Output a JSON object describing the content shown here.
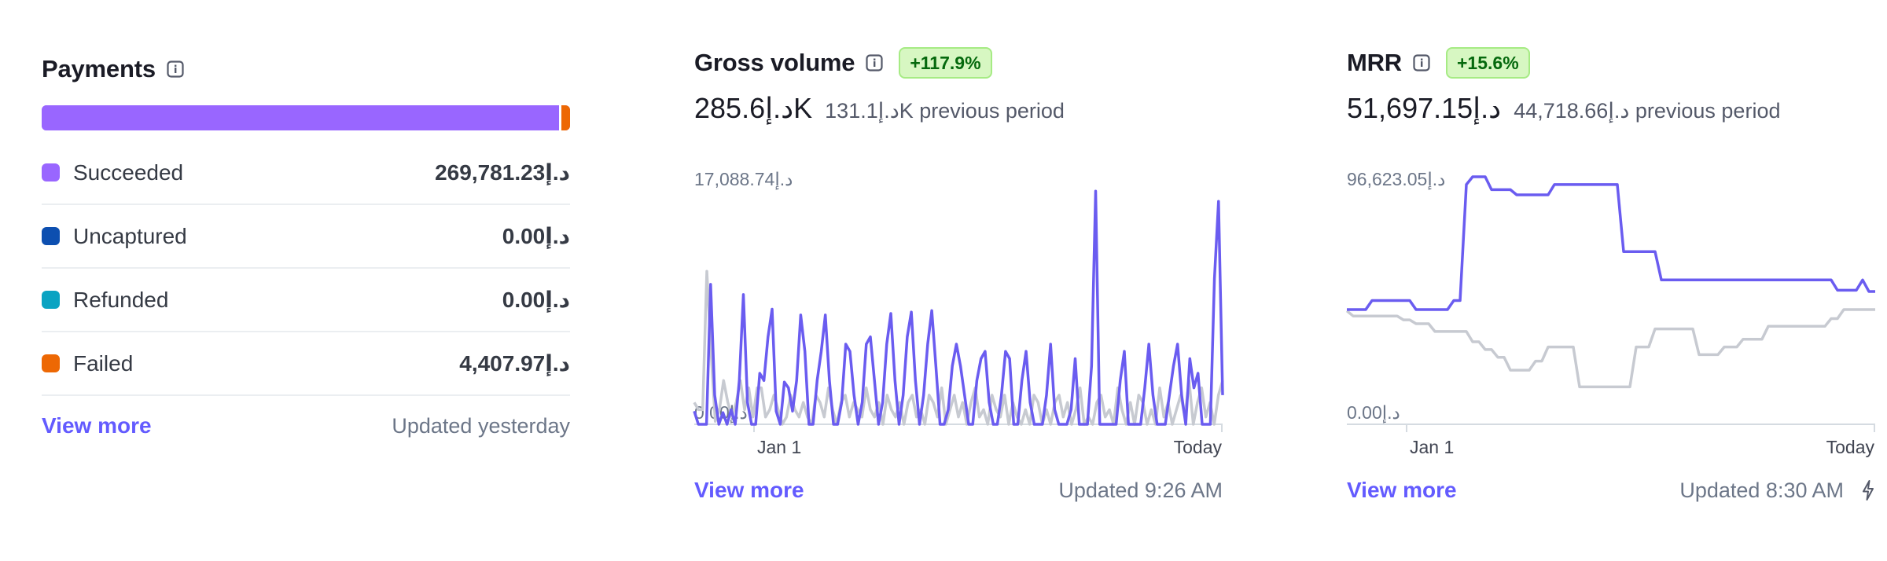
{
  "colors": {
    "accent": "#635bff",
    "series_current": "#6a5cf0",
    "series_previous": "#c7cad1",
    "succeeded": "#9966ff",
    "uncaptured": "#0d4fb0",
    "refunded": "#0aa3c2",
    "failed": "#ed6804",
    "badge_bg": "#d7f7c2",
    "badge_text": "#05690d"
  },
  "payments": {
    "title": "Payments",
    "info_icon": "info-icon",
    "bar": {
      "succeeded_fraction": 0.984,
      "failed_fraction": 0.016
    },
    "rows": [
      {
        "label": "Succeeded",
        "value": "269,781.23د.إ",
        "color": "#9966ff"
      },
      {
        "label": "Uncaptured",
        "value": "0.00د.إ",
        "color": "#0d4fb0"
      },
      {
        "label": "Refunded",
        "value": "0.00د.إ",
        "color": "#0aa3c2"
      },
      {
        "label": "Failed",
        "value": "4,407.97د.إ",
        "color": "#ed6804"
      }
    ],
    "view_more": "View more",
    "updated": "Updated yesterday"
  },
  "gross": {
    "title": "Gross volume",
    "info_icon": "info-icon",
    "badge": "+117.9%",
    "amount": "285.6د.إK",
    "previous": "131.1د.إK previous period",
    "view_more": "View more",
    "updated": "Updated 9:26 AM"
  },
  "mrr": {
    "title": "MRR",
    "info_icon": "info-icon",
    "badge": "+15.6%",
    "amount": "51,697.15د.إ",
    "previous": "44,718.66د.إ previous period",
    "view_more": "View more",
    "updated": "Updated 8:30 AM",
    "updated_icon": "lightning-icon"
  },
  "chart_data": [
    {
      "type": "line",
      "title": "Gross volume",
      "ylim": [
        0,
        17088.74
      ],
      "y_tick_labels": [
        "17,088.74د.إ",
        "0.00د.إ"
      ],
      "x_tick_labels": [
        "Jan 1",
        "Today"
      ],
      "grid": false,
      "series": [
        {
          "role": "current",
          "values": [
            900,
            0,
            0,
            0,
            9600,
            2000,
            0,
            800,
            0,
            1000,
            0,
            3000,
            8900,
            1500,
            0,
            0,
            3500,
            3000,
            6000,
            7900,
            900,
            0,
            2900,
            2500,
            900,
            3000,
            7500,
            5000,
            0,
            0,
            3000,
            5000,
            7500,
            3000,
            0,
            0,
            1500,
            5500,
            5000,
            2000,
            0,
            1500,
            5500,
            6000,
            3000,
            0,
            1500,
            5500,
            7600,
            3000,
            0,
            2000,
            6000,
            7700,
            3000,
            0,
            2000,
            5500,
            7800,
            4000,
            0,
            0,
            1000,
            4000,
            5500,
            4000,
            2000,
            0,
            0,
            3000,
            4500,
            5000,
            1500,
            0,
            0,
            2000,
            5000,
            4500,
            0,
            0,
            3000,
            5000,
            1500,
            0,
            0,
            0,
            2000,
            5500,
            1000,
            0,
            0,
            0,
            1000,
            4500,
            0,
            0,
            0,
            4000,
            16000,
            0,
            0,
            0,
            0,
            0,
            3000,
            5000,
            0,
            0,
            0,
            0,
            2500,
            5500,
            2000,
            0,
            0,
            0,
            2000,
            4000,
            5500,
            2000,
            0,
            4500,
            2500,
            3500,
            0,
            0,
            0,
            10000,
            15300,
            2000
          ]
        },
        {
          "role": "previous",
          "values": [
            1500,
            1000,
            1000,
            10500,
            5000,
            200,
            1000,
            3000,
            1500,
            500,
            1500,
            3000,
            1000,
            2500,
            500,
            2500,
            2500,
            500,
            1000,
            2000,
            1000,
            0,
            500,
            2000,
            1000,
            500,
            1500,
            500,
            0,
            2000,
            1500,
            500,
            2500,
            1000,
            0,
            1500,
            2000,
            500,
            1500,
            1000,
            500,
            2500,
            1000,
            500,
            1500,
            0,
            2000,
            1000,
            500,
            1500,
            0,
            1500,
            2000,
            500,
            1000,
            0,
            2000,
            1500,
            500,
            2500,
            0,
            1000,
            2000,
            500,
            1500,
            0,
            1500,
            2500,
            500,
            1000,
            0,
            2000,
            1000,
            500,
            2000,
            0,
            1500,
            500,
            0,
            1000,
            0,
            2000,
            1500,
            0,
            1000,
            0,
            1500,
            2000,
            500,
            1500,
            0,
            1000,
            2500,
            0,
            500,
            0,
            1500,
            2000,
            500,
            1000,
            0,
            2500,
            1000,
            0,
            1500,
            0,
            2000,
            1500,
            0,
            1000,
            0,
            2500,
            500,
            1500,
            0,
            1000,
            2000,
            500,
            3000,
            0,
            1500,
            2500,
            500,
            1500,
            0,
            2000,
            3000
          ]
        }
      ]
    },
    {
      "type": "line",
      "title": "MRR",
      "ylim": [
        0,
        96623.05
      ],
      "y_tick_labels": [
        "96,623.05د.إ",
        "0.00د.إ"
      ],
      "x_tick_labels": [
        "Jan 1",
        "Today"
      ],
      "grid": false,
      "series": [
        {
          "role": "current",
          "values": [
            44500,
            44500,
            44500,
            44500,
            48000,
            48000,
            48000,
            48000,
            48000,
            48000,
            48000,
            44500,
            44500,
            44500,
            44500,
            44500,
            44500,
            48000,
            48000,
            93000,
            96000,
            96000,
            96000,
            91000,
            91000,
            91000,
            91000,
            89000,
            89000,
            89000,
            89000,
            89000,
            89000,
            93000,
            93000,
            93000,
            93000,
            93000,
            93000,
            93000,
            93000,
            93000,
            93000,
            93000,
            67000,
            67000,
            67000,
            67000,
            67000,
            67000,
            56000,
            56000,
            56000,
            56000,
            56000,
            56000,
            56000,
            56000,
            56000,
            56000,
            56000,
            56000,
            56000,
            56000,
            56000,
            56000,
            56000,
            56000,
            56000,
            56000,
            56000,
            56000,
            56000,
            56000,
            56000,
            56000,
            56000,
            56000,
            52000,
            52000,
            52000,
            52000,
            56000,
            51500,
            51500
          ]
        },
        {
          "role": "previous",
          "values": [
            44000,
            42000,
            42000,
            42000,
            42000,
            42000,
            42000,
            42000,
            42000,
            40500,
            40500,
            39000,
            39000,
            39000,
            36000,
            36000,
            36000,
            36000,
            36000,
            36000,
            32000,
            32000,
            29000,
            29000,
            26000,
            26000,
            21000,
            21000,
            21000,
            21000,
            24500,
            24500,
            30000,
            30000,
            30000,
            30000,
            30000,
            14500,
            14500,
            14500,
            14500,
            14500,
            14500,
            14500,
            14500,
            14500,
            30000,
            30000,
            30000,
            37000,
            37000,
            37000,
            37000,
            37000,
            37000,
            37000,
            27000,
            27000,
            27000,
            27000,
            30000,
            30000,
            30000,
            33000,
            33000,
            33000,
            33000,
            38000,
            38000,
            38000,
            38000,
            38000,
            38000,
            38000,
            38000,
            38000,
            38000,
            41000,
            41000,
            44500,
            44500,
            44500,
            44500,
            44500,
            44500
          ]
        }
      ]
    }
  ]
}
